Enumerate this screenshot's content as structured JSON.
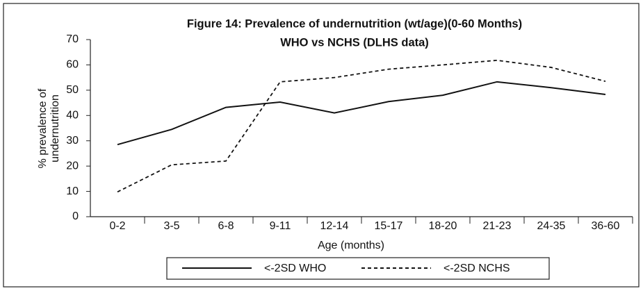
{
  "chart_data": {
    "type": "line",
    "title": "Figure 14: Prevalence of undernutrition (wt/age)(0-60 Months)",
    "subtitle": "WHO vs NCHS (DLHS data)",
    "ylabel": [
      "% prevalence of",
      "undernutrition"
    ],
    "xlabel": "Age (months)",
    "categories": [
      "0-2",
      "3-5",
      "6-8",
      "9-11",
      "12-14",
      "15-17",
      "18-20",
      "21-23",
      "24-35",
      "36-60"
    ],
    "series": [
      {
        "name": "<-2SD WHO",
        "color": "#111111",
        "dash": false,
        "values": [
          28.5,
          34.5,
          43.2,
          45.3,
          41,
          45.5,
          48,
          53.3,
          51,
          48.3
        ]
      },
      {
        "name": "<-2SD NCHS",
        "color": "#111111",
        "dash": true,
        "values": [
          9.8,
          20.5,
          22,
          53.3,
          55,
          58.3,
          60,
          61.8,
          59,
          53.5
        ]
      }
    ],
    "ylim": [
      0,
      70
    ],
    "yticks": [
      0,
      10,
      20,
      30,
      40,
      50,
      60,
      70
    ],
    "grid": false,
    "legend": "bottom"
  }
}
